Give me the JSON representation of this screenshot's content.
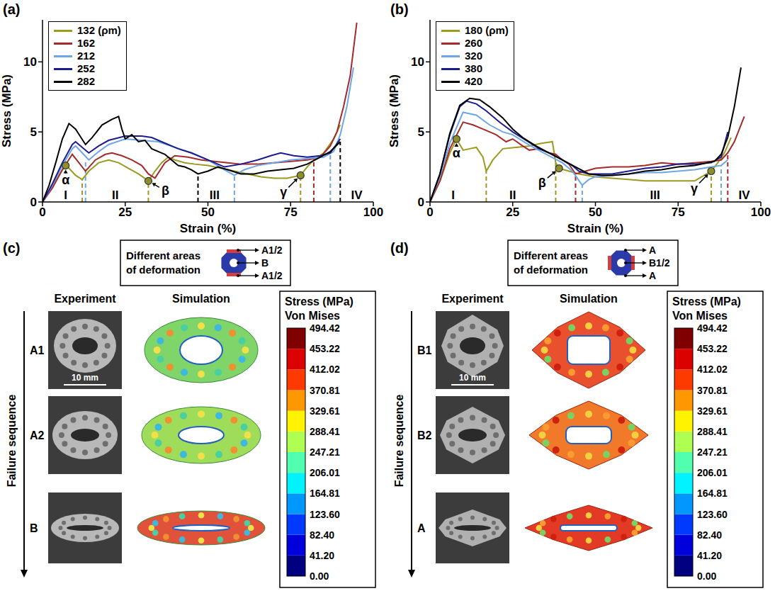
{
  "chart_data": [
    {
      "panel": "(a)",
      "type": "line",
      "x_label": "Strain (%)",
      "y_label": "Stress (MPa)",
      "xlim": [
        0,
        100
      ],
      "xticks": [
        0,
        25,
        50,
        75,
        100
      ],
      "ylim": [
        0,
        13
      ],
      "yticks": [
        0,
        5,
        10
      ],
      "legend": "top-left",
      "series": [
        {
          "name": "132 (ρm)",
          "color": "#9b9b1f",
          "x": [
            0,
            2,
            4,
            6,
            7,
            8,
            10,
            12,
            14,
            17,
            20,
            23,
            26,
            29,
            32,
            34,
            36,
            38,
            40,
            43,
            46,
            50,
            54,
            58,
            62,
            66,
            70,
            74,
            78,
            80,
            82,
            85,
            88,
            90
          ],
          "values": [
            0,
            0.7,
            1.5,
            2.3,
            2.6,
            2.4,
            1.9,
            1.6,
            2.2,
            2.8,
            3.0,
            2.8,
            2.4,
            2.0,
            1.5,
            2.2,
            2.8,
            3.2,
            3.0,
            2.8,
            2.7,
            2.6,
            2.4,
            2.2,
            2.0,
            1.8,
            1.7,
            1.7,
            1.9,
            2.5,
            3.0,
            3.5,
            4.5,
            5.5
          ]
        },
        {
          "name": "162",
          "color": "#a52a2a",
          "x": [
            0,
            3,
            6,
            9,
            11,
            13,
            16,
            19,
            21,
            24,
            27,
            30,
            32,
            34,
            37,
            40,
            44,
            48,
            52,
            56,
            60,
            65,
            70,
            75,
            80,
            84,
            87,
            89,
            91,
            93,
            95
          ],
          "values": [
            0,
            1.0,
            2.3,
            3.4,
            2.8,
            2.2,
            3.0,
            3.4,
            3.5,
            3.3,
            3.0,
            2.6,
            2.0,
            1.7,
            2.8,
            3.3,
            3.2,
            3.0,
            2.9,
            2.8,
            2.7,
            2.7,
            2.8,
            2.9,
            3.0,
            3.2,
            4.0,
            5.0,
            6.8,
            9.0,
            12.8
          ]
        },
        {
          "name": "212",
          "color": "#6ea6e6",
          "x": [
            0,
            3,
            6,
            9,
            10,
            12,
            14,
            17,
            20,
            25,
            30,
            35,
            40,
            45,
            50,
            55,
            58,
            61,
            65,
            70,
            75,
            80,
            85,
            88,
            90,
            92,
            94
          ],
          "values": [
            0,
            1.2,
            2.6,
            3.8,
            4.0,
            3.5,
            3.0,
            3.6,
            4.1,
            4.5,
            4.4,
            4.3,
            3.9,
            3.5,
            3.0,
            2.3,
            1.9,
            2.3,
            2.6,
            2.8,
            3.0,
            3.1,
            3.2,
            3.6,
            4.8,
            6.8,
            9.6
          ]
        },
        {
          "name": "252",
          "color": "#1c1c8f",
          "x": [
            0,
            3,
            6,
            9,
            10,
            12,
            14,
            17,
            20,
            25,
            30,
            33,
            37,
            41,
            45,
            50,
            55,
            60,
            65,
            69,
            72,
            76,
            80,
            84,
            87,
            90
          ],
          "values": [
            0,
            1.3,
            2.8,
            4.1,
            4.3,
            3.9,
            3.5,
            4.0,
            4.4,
            4.7,
            4.7,
            4.6,
            4.2,
            3.8,
            3.5,
            3.0,
            2.5,
            2.7,
            3.0,
            3.3,
            3.5,
            3.3,
            3.2,
            3.3,
            3.5,
            4.5
          ]
        },
        {
          "name": "282",
          "color": "#000000",
          "x": [
            0,
            2,
            4,
            6,
            8,
            10,
            13,
            15,
            18,
            21,
            23,
            24,
            25,
            27,
            29,
            31,
            33,
            35,
            37,
            39,
            41,
            43,
            45,
            47,
            50,
            53,
            56,
            60,
            64,
            68,
            72,
            76,
            80,
            84,
            87,
            90
          ],
          "values": [
            0,
            1.2,
            2.8,
            4.5,
            5.6,
            5.2,
            4.1,
            4.6,
            5.5,
            5.9,
            6.1,
            5.2,
            4.5,
            4.8,
            4.3,
            4.4,
            3.8,
            3.6,
            3.4,
            3.0,
            2.6,
            2.5,
            2.3,
            2.0,
            2.2,
            2.5,
            2.3,
            2.0,
            2.0,
            2.2,
            2.3,
            2.4,
            2.7,
            3.2,
            3.6,
            4.3
          ]
        }
      ],
      "points": [
        {
          "label": "α",
          "x": 7,
          "y": 2.6
        },
        {
          "label": "β",
          "x": 32,
          "y": 1.5
        },
        {
          "label": "γ",
          "x": 78,
          "y": 1.9
        }
      ],
      "stages": [
        {
          "label": "I",
          "x": 7
        },
        {
          "label": "II",
          "x": 22
        },
        {
          "label": "III",
          "x": 52
        },
        {
          "label": "IV",
          "x": 95
        }
      ],
      "boundaries": [
        {
          "x": 12,
          "y": 1.6,
          "color": "#9b9b1f"
        },
        {
          "x": 13,
          "y": 3.0,
          "color": "#6ea6e6"
        },
        {
          "x": 32,
          "y": 1.5,
          "color": "#9b9b1f"
        },
        {
          "x": 47,
          "y": 2.0,
          "color": "#000000"
        },
        {
          "x": 58,
          "y": 1.9,
          "color": "#6ea6e6"
        },
        {
          "x": 78,
          "y": 1.9,
          "color": "#9b9b1f"
        },
        {
          "x": 82,
          "y": 3.0,
          "color": "#a52a2a"
        },
        {
          "x": 87,
          "y": 3.5,
          "color": "#6ea6e6"
        },
        {
          "x": 90,
          "y": 4.3,
          "color": "#000000"
        }
      ]
    },
    {
      "panel": "(b)",
      "type": "line",
      "x_label": "Strain (%)",
      "y_label": "Stress (MPa)",
      "xlim": [
        0,
        100
      ],
      "xticks": [
        0,
        25,
        50,
        75,
        100
      ],
      "ylim": [
        0,
        13
      ],
      "yticks": [
        0,
        5,
        10
      ],
      "legend": "top-left",
      "series": [
        {
          "name": "180 (ρm)",
          "color": "#9b9b1f",
          "x": [
            0,
            3,
            6,
            8,
            10,
            12,
            14,
            16,
            17,
            19,
            22,
            26,
            30,
            34,
            37,
            38,
            39,
            42,
            45,
            50,
            55,
            60,
            65,
            70,
            75,
            80,
            85,
            87,
            89,
            91
          ],
          "values": [
            0,
            1.5,
            3.5,
            4.5,
            3.7,
            3.8,
            3.9,
            3.2,
            2.2,
            3.0,
            3.8,
            3.9,
            4.0,
            4.2,
            4.3,
            2.8,
            2.4,
            2.2,
            2.0,
            1.8,
            1.7,
            1.6,
            1.5,
            1.5,
            1.5,
            1.5,
            2.2,
            2.8,
            3.5,
            4.6
          ]
        },
        {
          "name": "260",
          "color": "#a52a2a",
          "x": [
            0,
            3,
            6,
            10,
            13,
            16,
            20,
            23,
            25,
            28,
            30,
            33,
            36,
            38,
            40,
            42,
            44,
            47,
            50,
            55,
            60,
            65,
            70,
            75,
            80,
            85,
            88,
            90,
            92,
            95
          ],
          "values": [
            0,
            1.5,
            3.8,
            5.7,
            5.5,
            5.2,
            4.8,
            4.3,
            4.5,
            4.0,
            3.7,
            3.8,
            3.5,
            3.4,
            3.0,
            2.7,
            2.0,
            2.2,
            2.4,
            2.5,
            2.5,
            2.6,
            2.8,
            2.7,
            2.8,
            2.9,
            3.0,
            3.5,
            4.3,
            6.1
          ]
        },
        {
          "name": "320",
          "color": "#6ea6e6",
          "x": [
            0,
            3,
            6,
            10,
            14,
            18,
            22,
            25,
            29,
            32,
            36,
            40,
            43,
            46,
            48,
            50,
            55,
            60,
            65,
            70,
            75,
            80,
            85,
            88,
            90
          ],
          "values": [
            0,
            1.8,
            4.2,
            6.4,
            6.2,
            5.5,
            5.0,
            4.8,
            4.2,
            3.8,
            3.3,
            2.8,
            2.2,
            1.2,
            1.6,
            1.8,
            1.9,
            2.0,
            2.1,
            2.1,
            2.2,
            2.3,
            2.5,
            2.6,
            3.0
          ]
        },
        {
          "name": "380",
          "color": "#1c1c8f",
          "x": [
            0,
            3,
            6,
            9,
            11,
            14,
            17,
            21,
            25,
            29,
            33,
            37,
            40,
            43,
            45,
            48,
            52,
            55,
            60,
            65,
            70,
            75,
            80,
            85,
            88,
            90
          ],
          "values": [
            0,
            2.0,
            4.8,
            6.8,
            7.2,
            7.0,
            6.5,
            5.7,
            5.0,
            4.4,
            3.8,
            3.4,
            3.0,
            2.6,
            2.2,
            2.0,
            2.0,
            2.0,
            2.2,
            2.4,
            2.5,
            2.7,
            2.7,
            2.8,
            3.2,
            5.0
          ]
        },
        {
          "name": "420",
          "color": "#000000",
          "x": [
            0,
            3,
            6,
            9,
            12,
            15,
            18,
            22,
            25,
            28,
            32,
            36,
            40,
            44,
            48,
            52,
            55,
            60,
            65,
            70,
            75,
            80,
            86,
            88,
            90,
            92,
            94
          ],
          "values": [
            0,
            2.0,
            4.9,
            6.9,
            7.4,
            7.3,
            6.8,
            6.0,
            5.2,
            4.6,
            4.0,
            3.5,
            3.0,
            2.5,
            2.0,
            1.9,
            1.9,
            2.0,
            2.2,
            2.3,
            2.5,
            2.6,
            2.9,
            3.4,
            4.6,
            6.8,
            9.6
          ]
        }
      ],
      "points": [
        {
          "label": "α",
          "x": 8,
          "y": 4.5
        },
        {
          "label": "β",
          "x": 39,
          "y": 2.4
        },
        {
          "label": "γ",
          "x": 85,
          "y": 2.2
        }
      ],
      "stages": [
        {
          "label": "I",
          "x": 7
        },
        {
          "label": "II",
          "x": 25
        },
        {
          "label": "III",
          "x": 68
        },
        {
          "label": "IV",
          "x": 95
        }
      ],
      "boundaries": [
        {
          "x": 17,
          "y": 2.2,
          "color": "#9b9b1f"
        },
        {
          "x": 38,
          "y": 2.8,
          "color": "#9b9b1f"
        },
        {
          "x": 44,
          "y": 2.0,
          "color": "#a52a2a"
        },
        {
          "x": 46,
          "y": 1.2,
          "color": "#6ea6e6"
        },
        {
          "x": 85,
          "y": 2.2,
          "color": "#9b9b1f"
        },
        {
          "x": 88,
          "y": 2.6,
          "color": "#6ea6e6"
        },
        {
          "x": 90,
          "y": 3.5,
          "color": "#a52a2a"
        }
      ]
    }
  ],
  "diagrams": [
    {
      "panel": "(c)",
      "areas_title": "Different areas of deformation",
      "areas": [
        "A1/2",
        "B",
        "A1/2"
      ],
      "columns": [
        "Experiment",
        "Simulation"
      ],
      "sequence_title": "Failure sequence",
      "sequence": [
        "A1",
        "A2",
        "B"
      ],
      "scale_bar": "10 mm",
      "colorbar": {
        "title": "Stress (MPa)",
        "subtitle": "Von Mises",
        "range": [
          0,
          494.42
        ],
        "ticks": [
          494.42,
          453.22,
          412.02,
          370.81,
          329.61,
          288.41,
          247.21,
          206.01,
          164.81,
          {
            "value": 123.6,
            "label": "123.60"
          },
          {
            "value": 82.4,
            "label": "82.40"
          },
          {
            "value": 41.2,
            "label": "41.20"
          },
          {
            "value": 0,
            "label": "0.00"
          }
        ]
      }
    },
    {
      "panel": "(d)",
      "areas_title": "Different areas of deformation",
      "areas": [
        "A",
        "B1/2",
        "A"
      ],
      "columns": [
        "Experiment",
        "Simulation"
      ],
      "sequence_title": "Failure sequence",
      "sequence": [
        "B1",
        "B2",
        "A"
      ],
      "scale_bar": "10 mm",
      "colorbar": {
        "title": "Stress (MPa)",
        "subtitle": "Von Mises",
        "range": [
          0,
          494.42
        ],
        "ticks": [
          494.42,
          453.22,
          412.02,
          370.81,
          329.61,
          288.41,
          247.21,
          206.01,
          164.81,
          {
            "value": 123.6,
            "label": "123.60"
          },
          {
            "value": 82.4,
            "label": "82.40"
          },
          {
            "value": 41.2,
            "label": "41.20"
          },
          {
            "value": 0,
            "label": "0.00"
          }
        ]
      }
    }
  ]
}
